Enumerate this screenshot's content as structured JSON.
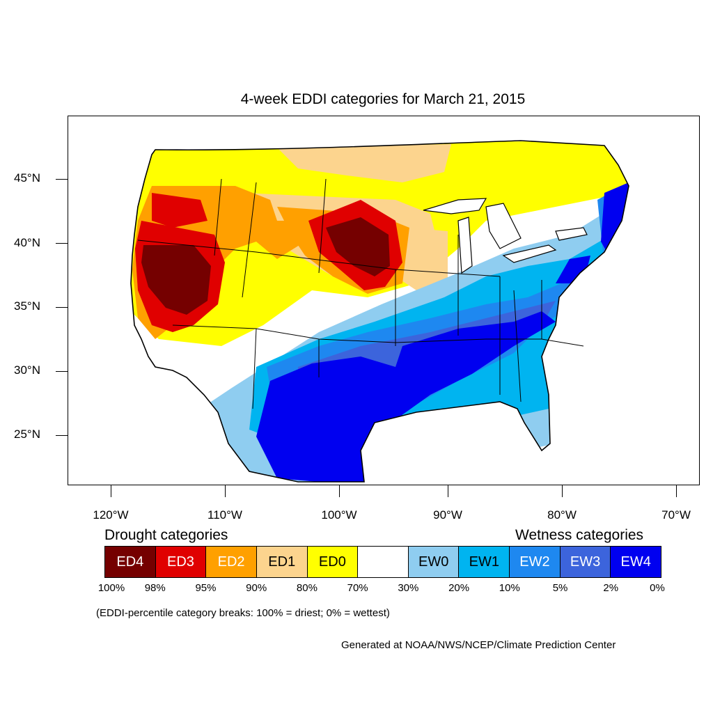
{
  "title": "4-week EDDI categories for March 21, 2015",
  "latitude_labels": [
    "45°N",
    "40°N",
    "35°N",
    "30°N",
    "25°N"
  ],
  "longitude_labels": [
    "120°W",
    "110°W",
    "100°W",
    "90°W",
    "80°W",
    "70°W"
  ],
  "drought_heading": "Drought categories",
  "wetness_heading": "Wetness categories",
  "legend_categories": [
    {
      "label": "ED4",
      "color": "#750000",
      "text_color": "#ffffff"
    },
    {
      "label": "ED3",
      "color": "#e00000",
      "text_color": "#ffffff"
    },
    {
      "label": "ED2",
      "color": "#ffa000",
      "text_color": "#ffffff"
    },
    {
      "label": "ED1",
      "color": "#fcd48e",
      "text_color": "#000000"
    },
    {
      "label": "ED0",
      "color": "#ffff00",
      "text_color": "#000000"
    },
    {
      "label": "",
      "color": "#ffffff",
      "text_color": "#000000"
    },
    {
      "label": "EW0",
      "color": "#8fcdf0",
      "text_color": "#000000"
    },
    {
      "label": "EW1",
      "color": "#00b4f0",
      "text_color": "#000000"
    },
    {
      "label": "EW2",
      "color": "#1e88f0",
      "text_color": "#ffffff"
    },
    {
      "label": "EW3",
      "color": "#3c64dc",
      "text_color": "#ffffff"
    },
    {
      "label": "EW4",
      "color": "#0000f0",
      "text_color": "#ffffff"
    }
  ],
  "percentile_breaks": [
    "100%",
    "98%",
    "95%",
    "90%",
    "80%",
    "70%",
    "30%",
    "20%",
    "10%",
    "5%",
    "2%",
    "0%"
  ],
  "note": "(EDDI-percentile category breaks: 100% = driest; 0% = wettest)",
  "credit": "Generated at NOAA/NWS/NCEP/Climate Prediction Center"
}
